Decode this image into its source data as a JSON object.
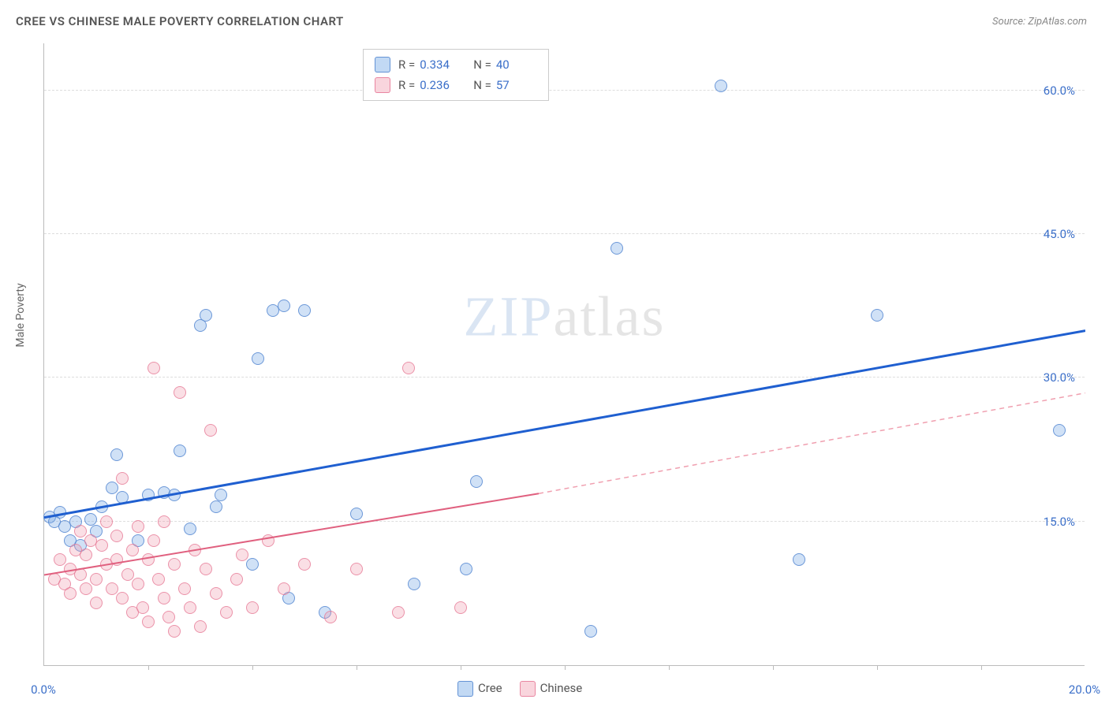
{
  "chart": {
    "type": "scatter",
    "title": "CREE VS CHINESE MALE POVERTY CORRELATION CHART",
    "source": "Source: ZipAtlas.com",
    "watermark_bold": "ZIP",
    "watermark_thin": "atlas",
    "ylabel": "Male Poverty",
    "background_color": "#ffffff",
    "grid_color": "#dddddd",
    "axis_color": "#bbbbbb",
    "tick_label_color": "#3b6fc9",
    "title_color": "#555555",
    "title_fontsize": 15,
    "tick_fontsize": 15,
    "ylabel_fontsize": 14,
    "xlim": [
      0,
      20
    ],
    "ylim": [
      0,
      65
    ],
    "x_ticks_major": [
      0,
      20
    ],
    "x_tick_labels": [
      "0.0%",
      "20.0%"
    ],
    "x_minor_ticks": [
      2,
      4,
      6,
      8,
      10,
      12,
      14,
      16,
      18
    ],
    "y_ticks": [
      15,
      30,
      45,
      60
    ],
    "y_tick_labels": [
      "15.0%",
      "30.0%",
      "45.0%",
      "60.0%"
    ],
    "series": [
      {
        "name": "Cree",
        "marker_fill": "rgba(120,170,230,0.35)",
        "marker_stroke": "rgba(90,140,210,0.85)",
        "marker_size": 16,
        "R": "0.334",
        "N": "40",
        "trend": {
          "x0": 0,
          "y0": 15.5,
          "x1": 20,
          "y1": 35.0,
          "color": "#1f5fd0",
          "width": 3,
          "dash": false
        },
        "points": [
          [
            0.1,
            15.5
          ],
          [
            0.2,
            15.0
          ],
          [
            0.3,
            16.0
          ],
          [
            0.4,
            14.5
          ],
          [
            0.6,
            15.0
          ],
          [
            0.5,
            13.0
          ],
          [
            1.0,
            14.0
          ],
          [
            1.3,
            18.5
          ],
          [
            1.4,
            22.0
          ],
          [
            1.5,
            17.5
          ],
          [
            2.0,
            17.8
          ],
          [
            2.3,
            18.0
          ],
          [
            2.5,
            17.8
          ],
          [
            2.6,
            22.4
          ],
          [
            3.0,
            35.5
          ],
          [
            3.1,
            36.5
          ],
          [
            3.3,
            16.5
          ],
          [
            3.4,
            17.8
          ],
          [
            4.0,
            10.5
          ],
          [
            4.1,
            32.0
          ],
          [
            4.4,
            37.0
          ],
          [
            4.6,
            37.5
          ],
          [
            4.7,
            7.0
          ],
          [
            5.0,
            37.0
          ],
          [
            5.4,
            5.5
          ],
          [
            6.0,
            15.8
          ],
          [
            7.1,
            8.5
          ],
          [
            8.1,
            10.0
          ],
          [
            8.3,
            19.2
          ],
          [
            10.5,
            3.5
          ],
          [
            11.0,
            43.5
          ],
          [
            13.0,
            60.5
          ],
          [
            14.5,
            11.0
          ],
          [
            16.0,
            36.5
          ],
          [
            19.5,
            24.5
          ],
          [
            2.8,
            14.2
          ],
          [
            1.8,
            13.0
          ],
          [
            0.9,
            15.2
          ],
          [
            0.7,
            12.5
          ],
          [
            1.1,
            16.5
          ]
        ]
      },
      {
        "name": "Chinese",
        "marker_fill": "rgba(240,150,170,0.30)",
        "marker_stroke": "rgba(230,120,150,0.75)",
        "marker_size": 16,
        "R": "0.236",
        "N": "57",
        "trend": {
          "x0": 0,
          "y0": 9.5,
          "x1": 9.5,
          "y1": 18.0,
          "color": "#e0607f",
          "width": 2,
          "dash": false
        },
        "trend_ext": {
          "x0": 9.5,
          "y0": 18.0,
          "x1": 20,
          "y1": 28.5,
          "color": "#f0a0b0",
          "width": 1.5,
          "dash": true
        },
        "points": [
          [
            0.2,
            9.0
          ],
          [
            0.3,
            11.0
          ],
          [
            0.4,
            8.5
          ],
          [
            0.5,
            10.0
          ],
          [
            0.5,
            7.5
          ],
          [
            0.6,
            12.0
          ],
          [
            0.7,
            9.5
          ],
          [
            0.7,
            14.0
          ],
          [
            0.8,
            11.5
          ],
          [
            0.8,
            8.0
          ],
          [
            0.9,
            13.0
          ],
          [
            1.0,
            9.0
          ],
          [
            1.0,
            6.5
          ],
          [
            1.1,
            12.5
          ],
          [
            1.2,
            10.5
          ],
          [
            1.2,
            15.0
          ],
          [
            1.3,
            8.0
          ],
          [
            1.4,
            11.0
          ],
          [
            1.4,
            13.5
          ],
          [
            1.5,
            7.0
          ],
          [
            1.5,
            19.5
          ],
          [
            1.6,
            9.5
          ],
          [
            1.7,
            12.0
          ],
          [
            1.7,
            5.5
          ],
          [
            1.8,
            14.5
          ],
          [
            1.8,
            8.5
          ],
          [
            1.9,
            6.0
          ],
          [
            2.0,
            11.0
          ],
          [
            2.0,
            4.5
          ],
          [
            2.1,
            13.0
          ],
          [
            2.1,
            31.0
          ],
          [
            2.2,
            9.0
          ],
          [
            2.3,
            7.0
          ],
          [
            2.3,
            15.0
          ],
          [
            2.4,
            5.0
          ],
          [
            2.5,
            10.5
          ],
          [
            2.5,
            3.5
          ],
          [
            2.6,
            28.5
          ],
          [
            2.7,
            8.0
          ],
          [
            2.8,
            6.0
          ],
          [
            2.9,
            12.0
          ],
          [
            3.0,
            4.0
          ],
          [
            3.1,
            10.0
          ],
          [
            3.2,
            24.5
          ],
          [
            3.3,
            7.5
          ],
          [
            3.5,
            5.5
          ],
          [
            3.7,
            9.0
          ],
          [
            3.8,
            11.5
          ],
          [
            4.0,
            6.0
          ],
          [
            4.3,
            13.0
          ],
          [
            4.6,
            8.0
          ],
          [
            5.0,
            10.5
          ],
          [
            5.5,
            5.0
          ],
          [
            6.0,
            10.0
          ],
          [
            6.8,
            5.5
          ],
          [
            7.0,
            31.0
          ],
          [
            8.0,
            6.0
          ]
        ]
      }
    ],
    "legend_bottom": [
      {
        "swatch": "blue",
        "label": "Cree"
      },
      {
        "swatch": "pink",
        "label": "Chinese"
      }
    ]
  }
}
